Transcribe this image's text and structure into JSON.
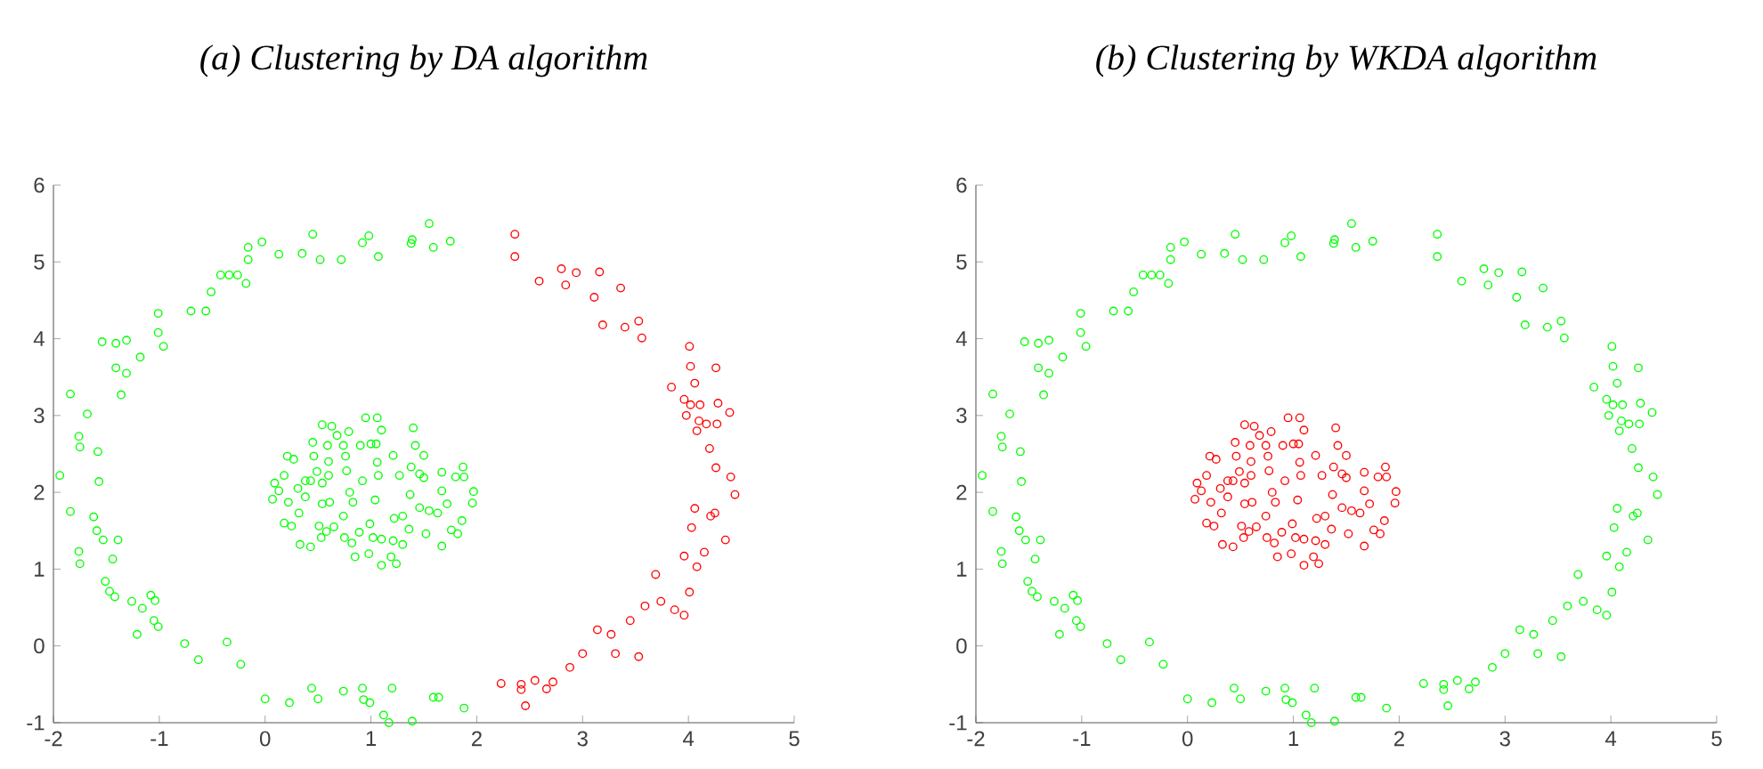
{
  "chart_data": [
    {
      "type": "scatter",
      "title": "(a) Clustering by DA algorithm",
      "marker": "circle",
      "xlim": [
        -2,
        5
      ],
      "ylim": [
        -1,
        6
      ],
      "xticks": [
        -2,
        -1,
        0,
        1,
        2,
        3,
        4,
        5
      ],
      "yticks": [
        -1,
        0,
        1,
        2,
        3,
        4,
        5,
        6
      ],
      "series": [
        {
          "color": "#00ff00",
          "x": [
            -1.94,
            -1.84,
            -1.84,
            -1.68,
            -1.76,
            -1.75,
            -1.58,
            -1.57,
            -1.62,
            -1.59,
            -1.53,
            -1.39,
            -1.76,
            -1.75,
            -1.44,
            -1.51,
            -1.47,
            -1.42,
            -1.26,
            -1.16,
            -1.08,
            -1.04,
            -1.05,
            -1.01,
            -1.21,
            -0.76,
            -0.63,
            -0.36,
            -0.23,
            0.0,
            0.23,
            0.44,
            0.5,
            0.74,
            0.92,
            0.93,
            0.99,
            1.2,
            1.12,
            1.17,
            1.39,
            1.59,
            1.64,
            1.88,
            -1.54,
            -1.41,
            -1.31,
            -1.41,
            -1.31,
            -1.36,
            -1.18,
            -1.01,
            -1.01,
            -0.96,
            -0.7,
            -0.56,
            -0.51,
            -0.42,
            -0.34,
            -0.26,
            -0.18,
            -0.16,
            -0.16,
            -0.03,
            0.13,
            0.35,
            0.45,
            0.52,
            0.72,
            0.92,
            0.98,
            1.07,
            1.38,
            1.39,
            1.55,
            1.59,
            1.75,
            0.07,
            0.09,
            0.18,
            0.21,
            0.27,
            0.13,
            0.22,
            0.18,
            0.25,
            0.32,
            0.33,
            0.43,
            0.31,
            0.38,
            0.43,
            0.38,
            0.45,
            0.46,
            0.49,
            0.54,
            0.6,
            0.54,
            0.54,
            0.61,
            0.51,
            0.58,
            0.53,
            0.65,
            0.63,
            0.68,
            0.74,
            0.76,
            0.79,
            0.77,
            0.83,
            0.8,
            0.74,
            0.75,
            0.82,
            0.85,
            0.92,
            0.9,
            0.95,
            1.06,
            1.1,
            1.0,
            1.05,
            1.06,
            1.07,
            1.04,
            0.89,
            0.99,
            1.02,
            0.98,
            1.1,
            1.1,
            1.19,
            1.21,
            1.24,
            1.3,
            1.21,
            1.22,
            1.3,
            1.36,
            1.38,
            1.37,
            1.4,
            1.42,
            1.5,
            1.27,
            1.46,
            1.5,
            1.46,
            1.55,
            1.52,
            1.67,
            1.67,
            1.72,
            1.8,
            1.88,
            1.87,
            1.97,
            1.96,
            1.86,
            1.76,
            1.82,
            1.67,
            1.63,
            0.6,
            0.59
          ],
          "values": [
            2.22,
            3.28,
            1.75,
            3.02,
            2.73,
            2.59,
            2.53,
            2.14,
            1.68,
            1.5,
            1.38,
            1.38,
            1.23,
            1.07,
            1.13,
            0.84,
            0.71,
            0.64,
            0.58,
            0.49,
            0.66,
            0.59,
            0.33,
            0.25,
            0.15,
            0.03,
            -0.18,
            0.05,
            -0.24,
            -0.69,
            -0.74,
            -0.55,
            -0.69,
            -0.59,
            -0.55,
            -0.7,
            -0.74,
            -0.55,
            -0.9,
            -1.0,
            -0.98,
            -0.67,
            -0.67,
            -0.81,
            3.96,
            3.94,
            3.98,
            3.62,
            3.55,
            3.27,
            3.76,
            4.33,
            4.08,
            3.9,
            4.36,
            4.36,
            4.61,
            4.83,
            4.83,
            4.83,
            4.72,
            5.03,
            5.19,
            5.26,
            5.1,
            5.11,
            5.36,
            5.03,
            5.03,
            5.25,
            5.34,
            5.07,
            5.24,
            5.29,
            5.5,
            5.19,
            5.27,
            1.91,
            2.12,
            2.22,
            2.47,
            2.43,
            2.02,
            1.87,
            1.6,
            1.56,
            1.73,
            1.32,
            1.29,
            2.05,
            2.15,
            2.15,
            1.94,
            2.65,
            2.47,
            2.27,
            2.88,
            2.22,
            2.12,
            1.85,
            1.87,
            1.56,
            1.49,
            1.41,
            1.55,
            2.86,
            2.74,
            2.61,
            2.47,
            2.79,
            2.28,
            1.87,
            2.0,
            1.69,
            1.41,
            1.34,
            1.16,
            2.15,
            2.61,
            2.97,
            2.97,
            2.81,
            2.63,
            2.63,
            2.39,
            2.22,
            1.9,
            1.48,
            1.59,
            1.41,
            1.2,
            1.39,
            1.05,
            1.16,
            1.37,
            1.07,
            1.32,
            2.48,
            1.66,
            1.69,
            1.52,
            2.33,
            1.97,
            2.84,
            2.61,
            2.48,
            2.22,
            2.24,
            2.19,
            1.8,
            1.76,
            1.46,
            2.26,
            2.02,
            1.85,
            2.2,
            2.2,
            2.33,
            2.01,
            1.86,
            1.63,
            1.51,
            1.46,
            1.3,
            1.73,
            2.4,
            2.61
          ]
        },
        {
          "color": "#ff0000",
          "x": [
            2.36,
            2.36,
            2.59,
            2.8,
            2.84,
            2.94,
            3.16,
            3.11,
            3.36,
            3.19,
            3.4,
            3.53,
            3.56,
            4.01,
            4.02,
            4.06,
            4.26,
            3.84,
            3.96,
            4.02,
            3.98,
            4.11,
            4.28,
            4.39,
            4.1,
            4.17,
            4.27,
            4.08,
            4.2,
            4.26,
            4.4,
            4.44,
            4.06,
            4.03,
            4.21,
            4.25,
            4.35,
            3.96,
            4.15,
            4.08,
            3.69,
            4.01,
            3.59,
            3.74,
            3.87,
            3.96,
            3.45,
            3.14,
            3.27,
            3.31,
            3.53,
            3.0,
            2.88,
            2.72,
            2.66,
            2.55,
            2.42,
            2.42,
            2.46,
            2.23
          ],
          "values": [
            5.36,
            5.07,
            4.75,
            4.91,
            4.7,
            4.86,
            4.87,
            4.54,
            4.66,
            4.18,
            4.15,
            4.23,
            4.01,
            3.9,
            3.64,
            3.42,
            3.62,
            3.37,
            3.21,
            3.14,
            3.0,
            3.14,
            3.16,
            3.04,
            2.93,
            2.89,
            2.89,
            2.8,
            2.57,
            2.32,
            2.2,
            1.97,
            1.79,
            1.54,
            1.69,
            1.73,
            1.38,
            1.17,
            1.22,
            1.03,
            0.93,
            0.7,
            0.52,
            0.58,
            0.47,
            0.4,
            0.33,
            0.21,
            0.15,
            -0.1,
            -0.14,
            -0.1,
            -0.28,
            -0.47,
            -0.56,
            -0.45,
            -0.5,
            -0.57,
            -0.78,
            -0.49
          ]
        }
      ]
    },
    {
      "type": "scatter",
      "title": "(b) Clustering by WKDA algorithm",
      "marker": "circle",
      "xlim": [
        -2,
        5
      ],
      "ylim": [
        -1,
        6
      ],
      "xticks": [
        -2,
        -1,
        0,
        1,
        2,
        3,
        4,
        5
      ],
      "yticks": [
        -1,
        0,
        1,
        2,
        3,
        4,
        5,
        6
      ],
      "series": [
        {
          "color": "#00ff00",
          "x": [
            -1.94,
            -1.84,
            -1.84,
            -1.68,
            -1.76,
            -1.75,
            -1.58,
            -1.57,
            -1.62,
            -1.59,
            -1.53,
            -1.39,
            -1.76,
            -1.75,
            -1.44,
            -1.51,
            -1.47,
            -1.42,
            -1.26,
            -1.16,
            -1.08,
            -1.04,
            -1.05,
            -1.01,
            -1.21,
            -0.76,
            -0.63,
            -0.36,
            -0.23,
            0.0,
            0.23,
            0.44,
            0.5,
            0.74,
            0.92,
            0.93,
            0.99,
            1.2,
            1.12,
            1.17,
            1.39,
            1.59,
            1.64,
            1.88,
            -1.54,
            -1.41,
            -1.31,
            -1.41,
            -1.31,
            -1.36,
            -1.18,
            -1.01,
            -1.01,
            -0.96,
            -0.7,
            -0.56,
            -0.51,
            -0.42,
            -0.34,
            -0.26,
            -0.18,
            -0.16,
            -0.16,
            -0.03,
            0.13,
            0.35,
            0.45,
            0.52,
            0.72,
            0.92,
            0.98,
            1.07,
            1.38,
            1.39,
            1.55,
            1.59,
            1.75,
            2.36,
            2.36,
            2.59,
            2.8,
            2.84,
            2.94,
            3.16,
            3.11,
            3.36,
            3.19,
            3.4,
            3.53,
            3.56,
            4.01,
            4.02,
            4.06,
            4.26,
            3.84,
            3.96,
            4.02,
            3.98,
            4.11,
            4.28,
            4.39,
            4.1,
            4.17,
            4.27,
            4.08,
            4.2,
            4.26,
            4.4,
            4.44,
            4.06,
            4.03,
            4.21,
            4.25,
            4.35,
            3.96,
            4.15,
            4.08,
            3.69,
            4.01,
            3.59,
            3.74,
            3.87,
            3.96,
            3.45,
            3.14,
            3.27,
            3.31,
            3.53,
            3.0,
            2.88,
            2.72,
            2.66,
            2.55,
            2.42,
            2.42,
            2.46,
            2.23
          ],
          "values": [
            2.22,
            3.28,
            1.75,
            3.02,
            2.73,
            2.59,
            2.53,
            2.14,
            1.68,
            1.5,
            1.38,
            1.38,
            1.23,
            1.07,
            1.13,
            0.84,
            0.71,
            0.64,
            0.58,
            0.49,
            0.66,
            0.59,
            0.33,
            0.25,
            0.15,
            0.03,
            -0.18,
            0.05,
            -0.24,
            -0.69,
            -0.74,
            -0.55,
            -0.69,
            -0.59,
            -0.55,
            -0.7,
            -0.74,
            -0.55,
            -0.9,
            -1.0,
            -0.98,
            -0.67,
            -0.67,
            -0.81,
            3.96,
            3.94,
            3.98,
            3.62,
            3.55,
            3.27,
            3.76,
            4.33,
            4.08,
            3.9,
            4.36,
            4.36,
            4.61,
            4.83,
            4.83,
            4.83,
            4.72,
            5.03,
            5.19,
            5.26,
            5.1,
            5.11,
            5.36,
            5.03,
            5.03,
            5.25,
            5.34,
            5.07,
            5.24,
            5.29,
            5.5,
            5.19,
            5.27,
            5.36,
            5.07,
            4.75,
            4.91,
            4.7,
            4.86,
            4.87,
            4.54,
            4.66,
            4.18,
            4.15,
            4.23,
            4.01,
            3.9,
            3.64,
            3.42,
            3.62,
            3.37,
            3.21,
            3.14,
            3.0,
            3.14,
            3.16,
            3.04,
            2.93,
            2.89,
            2.89,
            2.8,
            2.57,
            2.32,
            2.2,
            1.97,
            1.79,
            1.54,
            1.69,
            1.73,
            1.38,
            1.17,
            1.22,
            1.03,
            0.93,
            0.7,
            0.52,
            0.58,
            0.47,
            0.4,
            0.33,
            0.21,
            0.15,
            -0.1,
            -0.14,
            -0.1,
            -0.28,
            -0.47,
            -0.56,
            -0.45,
            -0.5,
            -0.57,
            -0.78,
            -0.49
          ]
        },
        {
          "color": "#ff0000",
          "x": [
            0.07,
            0.09,
            0.18,
            0.21,
            0.27,
            0.13,
            0.22,
            0.18,
            0.25,
            0.32,
            0.33,
            0.43,
            0.31,
            0.38,
            0.43,
            0.38,
            0.45,
            0.46,
            0.49,
            0.54,
            0.6,
            0.54,
            0.54,
            0.61,
            0.51,
            0.58,
            0.53,
            0.65,
            0.63,
            0.68,
            0.74,
            0.76,
            0.79,
            0.77,
            0.83,
            0.8,
            0.74,
            0.75,
            0.82,
            0.85,
            0.92,
            0.9,
            0.95,
            1.06,
            1.1,
            1.0,
            1.05,
            1.06,
            1.07,
            1.04,
            0.89,
            0.99,
            1.02,
            0.98,
            1.1,
            1.1,
            1.19,
            1.21,
            1.24,
            1.3,
            1.21,
            1.22,
            1.3,
            1.36,
            1.38,
            1.37,
            1.4,
            1.42,
            1.5,
            1.27,
            1.46,
            1.5,
            1.46,
            1.55,
            1.52,
            1.67,
            1.67,
            1.72,
            1.8,
            1.88,
            1.87,
            1.97,
            1.96,
            1.86,
            1.76,
            1.82,
            1.67,
            1.63,
            0.6,
            0.59
          ],
          "values": [
            1.91,
            2.12,
            2.22,
            2.47,
            2.43,
            2.02,
            1.87,
            1.6,
            1.56,
            1.73,
            1.32,
            1.29,
            2.05,
            2.15,
            2.15,
            1.94,
            2.65,
            2.47,
            2.27,
            2.88,
            2.22,
            2.12,
            1.85,
            1.87,
            1.56,
            1.49,
            1.41,
            1.55,
            2.86,
            2.74,
            2.61,
            2.47,
            2.79,
            2.28,
            1.87,
            2.0,
            1.69,
            1.41,
            1.34,
            1.16,
            2.15,
            2.61,
            2.97,
            2.97,
            2.81,
            2.63,
            2.63,
            2.39,
            2.22,
            1.9,
            1.48,
            1.59,
            1.41,
            1.2,
            1.39,
            1.05,
            1.16,
            1.37,
            1.07,
            1.32,
            2.48,
            1.66,
            1.69,
            1.52,
            2.33,
            1.97,
            2.84,
            2.61,
            2.48,
            2.22,
            2.24,
            2.19,
            1.8,
            1.76,
            1.46,
            2.26,
            2.02,
            1.85,
            2.2,
            2.2,
            2.33,
            2.01,
            1.86,
            1.63,
            1.51,
            1.46,
            1.3,
            1.73,
            2.4,
            2.61
          ]
        }
      ]
    }
  ]
}
